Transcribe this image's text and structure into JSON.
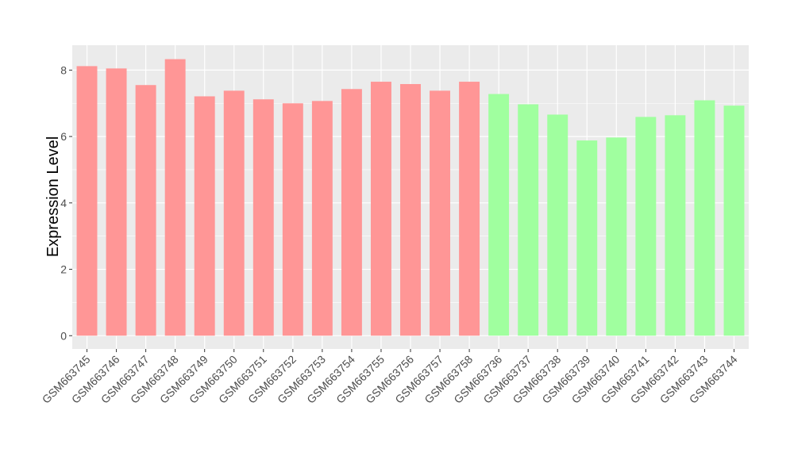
{
  "chart_data": {
    "type": "bar",
    "title": "",
    "xlabel": "",
    "ylabel": "Expression Level",
    "ylim": [
      -0.4,
      8.75
    ],
    "yticks": [
      0,
      2,
      4,
      6,
      8
    ],
    "grid": true,
    "legend": "none",
    "categories": [
      "GSM663745",
      "GSM663746",
      "GSM663747",
      "GSM663748",
      "GSM663749",
      "GSM663750",
      "GSM663751",
      "GSM663752",
      "GSM663753",
      "GSM663754",
      "GSM663755",
      "GSM663756",
      "GSM663757",
      "GSM663758",
      "GSM663736",
      "GSM663737",
      "GSM663738",
      "GSM663739",
      "GSM663740",
      "GSM663741",
      "GSM663742",
      "GSM663743",
      "GSM663744"
    ],
    "values": [
      8.12,
      8.05,
      7.55,
      8.33,
      7.21,
      7.38,
      7.12,
      7.0,
      7.07,
      7.43,
      7.65,
      7.58,
      7.38,
      7.65,
      7.28,
      6.97,
      6.66,
      5.88,
      5.97,
      6.59,
      6.64,
      7.09,
      6.93
    ],
    "groups": [
      "A",
      "A",
      "A",
      "A",
      "A",
      "A",
      "A",
      "A",
      "A",
      "A",
      "A",
      "A",
      "A",
      "A",
      "B",
      "B",
      "B",
      "B",
      "B",
      "B",
      "B",
      "B",
      "B"
    ],
    "colors": {
      "A": "#ff9696",
      "B": "#a0ff9f",
      "panel": "#ebebeb",
      "grid": "#ffffff"
    }
  }
}
